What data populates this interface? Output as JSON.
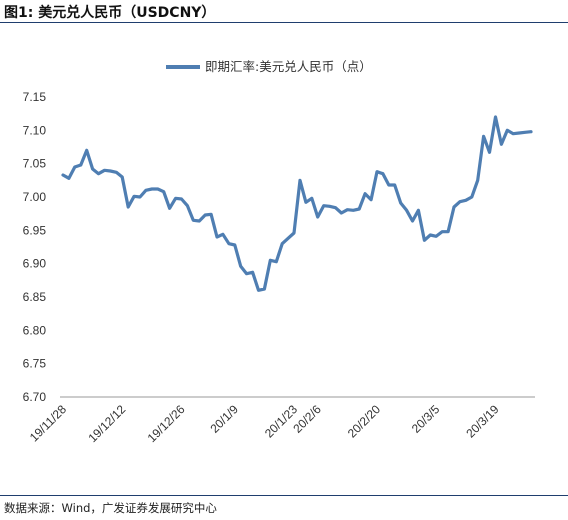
{
  "header": {
    "figure_label": "图1:",
    "figure_title": "美元兑人民币（USDCNY）"
  },
  "footer": {
    "source": "数据来源：Wind，广发证券发展研究中心"
  },
  "colors": {
    "series": "#4f7eb2",
    "rule": "#1f3e6e"
  },
  "chart_data": {
    "type": "line",
    "title": "",
    "xlabel": "",
    "ylabel": "",
    "ylim": [
      6.7,
      7.15
    ],
    "y_ticks": [
      "7.15",
      "7.10",
      "7.05",
      "7.00",
      "6.95",
      "6.90",
      "6.85",
      "6.80",
      "6.75",
      "6.70"
    ],
    "x_ticks": [
      "19/11/28",
      "19/12/12",
      "19/12/26",
      "20/1/9",
      "20/1/23",
      "20/2/6",
      "20/2/20",
      "20/3/5",
      "20/3/19"
    ],
    "legend": {
      "position": "top-center",
      "entries": [
        "即期汇率:美元兑人民币（点）"
      ]
    },
    "grid": false,
    "series": [
      {
        "name": "即期汇率:美元兑人民币（点）",
        "x": [
          "2019-11-28",
          "2019-11-29",
          "2019-12-02",
          "2019-12-03",
          "2019-12-04",
          "2019-12-05",
          "2019-12-06",
          "2019-12-09",
          "2019-12-10",
          "2019-12-11",
          "2019-12-12",
          "2019-12-13",
          "2019-12-16",
          "2019-12-17",
          "2019-12-18",
          "2019-12-19",
          "2019-12-20",
          "2019-12-23",
          "2019-12-24",
          "2019-12-25",
          "2019-12-26",
          "2019-12-27",
          "2019-12-30",
          "2019-12-31",
          "2020-01-02",
          "2020-01-03",
          "2020-01-06",
          "2020-01-07",
          "2020-01-08",
          "2020-01-09",
          "2020-01-10",
          "2020-01-13",
          "2020-01-14",
          "2020-01-15",
          "2020-01-16",
          "2020-01-17",
          "2020-01-20",
          "2020-01-21",
          "2020-01-22",
          "2020-01-23",
          "2020-02-03",
          "2020-02-04",
          "2020-02-05",
          "2020-02-06",
          "2020-02-07",
          "2020-02-10",
          "2020-02-11",
          "2020-02-12",
          "2020-02-13",
          "2020-02-14",
          "2020-02-17",
          "2020-02-18",
          "2020-02-19",
          "2020-02-20",
          "2020-02-21",
          "2020-02-24",
          "2020-02-25",
          "2020-02-26",
          "2020-02-27",
          "2020-02-28",
          "2020-03-02",
          "2020-03-03",
          "2020-03-04",
          "2020-03-05",
          "2020-03-06",
          "2020-03-09",
          "2020-03-10",
          "2020-03-11",
          "2020-03-12",
          "2020-03-13",
          "2020-03-16",
          "2020-03-17",
          "2020-03-18",
          "2020-03-19",
          "2020-03-20",
          "2020-03-23",
          "2020-03-24",
          "2020-03-25",
          "2020-03-26",
          "2020-03-27"
        ],
        "values": [
          7.033,
          7.028,
          7.045,
          7.048,
          7.07,
          7.042,
          7.035,
          7.04,
          7.039,
          7.037,
          7.03,
          6.985,
          7.001,
          7.0,
          7.01,
          7.012,
          7.012,
          7.008,
          6.983,
          6.998,
          6.997,
          6.987,
          6.965,
          6.964,
          6.973,
          6.974,
          6.94,
          6.944,
          6.93,
          6.928,
          6.896,
          6.885,
          6.887,
          6.86,
          6.862,
          6.905,
          6.903,
          6.93,
          6.938,
          6.946,
          7.025,
          6.992,
          6.998,
          6.97,
          6.987,
          6.986,
          6.984,
          6.976,
          6.981,
          6.98,
          6.982,
          7.005,
          6.996,
          7.038,
          7.035,
          7.018,
          7.018,
          6.991,
          6.98,
          6.964,
          6.98,
          6.935,
          6.943,
          6.941,
          6.948,
          6.948,
          6.985,
          6.993,
          6.995,
          7.0,
          7.025,
          7.091,
          7.067,
          7.12,
          7.079,
          7.1,
          7.095,
          7.096,
          7.097,
          7.098
        ]
      }
    ]
  }
}
